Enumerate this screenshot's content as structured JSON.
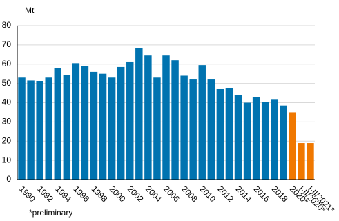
{
  "chart_data": {
    "type": "bar",
    "y_unit": "Mt",
    "note": "*preliminary",
    "categories": [
      "1990",
      null,
      "1992",
      null,
      "1994",
      null,
      "1996",
      null,
      "1998",
      null,
      "2000",
      null,
      "2002",
      null,
      "2004",
      null,
      "2006",
      null,
      "2008",
      null,
      "2010",
      null,
      "2012",
      null,
      "2014",
      null,
      "2016",
      null,
      "2018",
      null,
      "2020*",
      "I-II/2020*",
      "I-II/2021*"
    ],
    "values": [
      53,
      51.5,
      51,
      53,
      58,
      54.5,
      60.5,
      59,
      56,
      55,
      53,
      58.5,
      61,
      68.5,
      64.5,
      53,
      64.5,
      62,
      54,
      52,
      59.5,
      52,
      47,
      47.5,
      44,
      40,
      43,
      40.5,
      41.5,
      38.5,
      35,
      19,
      19
    ],
    "colors": [
      "#0073b0",
      "#0073b0",
      "#0073b0",
      "#0073b0",
      "#0073b0",
      "#0073b0",
      "#0073b0",
      "#0073b0",
      "#0073b0",
      "#0073b0",
      "#0073b0",
      "#0073b0",
      "#0073b0",
      "#0073b0",
      "#0073b0",
      "#0073b0",
      "#0073b0",
      "#0073b0",
      "#0073b0",
      "#0073b0",
      "#0073b0",
      "#0073b0",
      "#0073b0",
      "#0073b0",
      "#0073b0",
      "#0073b0",
      "#0073b0",
      "#0073b0",
      "#0073b0",
      "#0073b0",
      "#f07800",
      "#f07800",
      "#f07800"
    ],
    "ylim": [
      0,
      80
    ],
    "yticks": [
      0,
      10,
      20,
      30,
      40,
      50,
      60,
      70,
      80
    ],
    "grid": true
  }
}
